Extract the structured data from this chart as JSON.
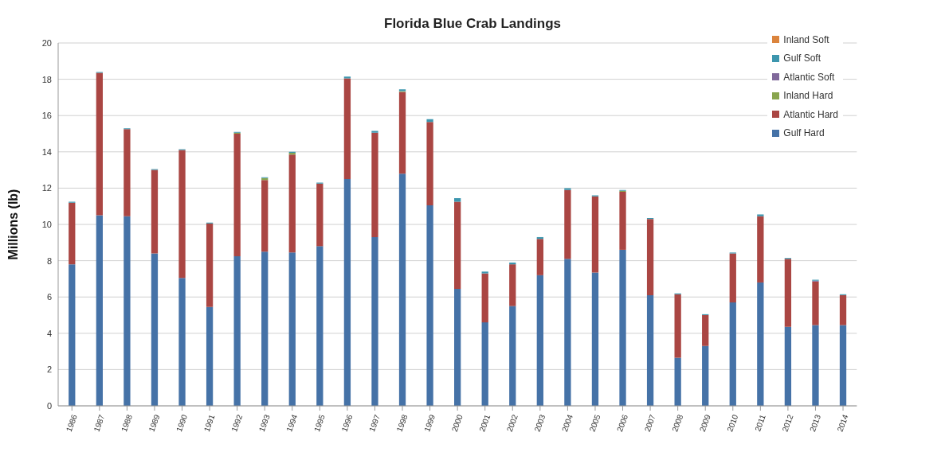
{
  "chart_data": {
    "type": "bar",
    "title": "Florida Blue Crab Landings",
    "ylabel": "Millions (lb)",
    "stacked": true,
    "legend": "top right",
    "grid": "y",
    "categories": [
      "1986",
      "1987",
      "1988",
      "1989",
      "1990",
      "1991",
      "1992",
      "1993",
      "1994",
      "1995",
      "1996",
      "1997",
      "1998",
      "1999",
      "2000",
      "2001",
      "2002",
      "2003",
      "2004",
      "2005",
      "2006",
      "2007",
      "2008",
      "2009",
      "2010",
      "2011",
      "2012",
      "2013",
      "2014"
    ],
    "ylim": [
      0,
      20
    ],
    "yticks": [
      0,
      2,
      4,
      6,
      8,
      10,
      12,
      14,
      16,
      18,
      20
    ],
    "series": [
      {
        "name": "Gulf Hard",
        "color": "#4572a7",
        "values": [
          7.8,
          10.5,
          10.45,
          8.4,
          7.05,
          5.45,
          8.25,
          8.5,
          8.45,
          8.8,
          12.5,
          9.3,
          12.8,
          11.05,
          6.45,
          4.6,
          5.5,
          7.2,
          8.1,
          7.35,
          8.6,
          6.1,
          2.65,
          3.3,
          5.7,
          6.8,
          4.35,
          4.45,
          4.45
        ]
      },
      {
        "name": "Atlantic Hard",
        "color": "#aa4643",
        "values": [
          3.4,
          7.85,
          4.8,
          4.6,
          7.05,
          4.6,
          6.75,
          3.95,
          5.4,
          3.45,
          5.55,
          5.75,
          4.5,
          4.6,
          4.8,
          2.7,
          2.3,
          2.0,
          3.8,
          4.2,
          3.2,
          4.2,
          3.5,
          1.7,
          2.7,
          3.65,
          3.75,
          2.4,
          1.65
        ]
      },
      {
        "name": "Inland Hard",
        "color": "#89a54e",
        "values": [
          0,
          0,
          0,
          0,
          0,
          0,
          0.05,
          0.1,
          0.1,
          0,
          0,
          0,
          0.05,
          0,
          0,
          0,
          0,
          0,
          0,
          0,
          0.05,
          0,
          0,
          0,
          0,
          0,
          0,
          0,
          0
        ]
      },
      {
        "name": "Atlantic Soft",
        "color": "#80699b",
        "values": [
          0,
          0,
          0,
          0,
          0,
          0,
          0,
          0,
          0,
          0,
          0,
          0,
          0,
          0,
          0,
          0,
          0,
          0,
          0,
          0,
          0,
          0,
          0,
          0,
          0,
          0,
          0,
          0.05,
          0
        ]
      },
      {
        "name": "Gulf Soft",
        "color": "#3d96ae",
        "values": [
          0.05,
          0.05,
          0.05,
          0.05,
          0.05,
          0.05,
          0.05,
          0.05,
          0.05,
          0.05,
          0.1,
          0.1,
          0.1,
          0.15,
          0.2,
          0.1,
          0.1,
          0.1,
          0.1,
          0.05,
          0.05,
          0.05,
          0.05,
          0.05,
          0.05,
          0.1,
          0.05,
          0.05,
          0.05
        ]
      },
      {
        "name": "Inland Soft",
        "color": "#db843d",
        "values": [
          0,
          0,
          0,
          0,
          0,
          0,
          0,
          0,
          0,
          0,
          0,
          0,
          0,
          0,
          0,
          0,
          0,
          0,
          0,
          0,
          0,
          0,
          0,
          0,
          0,
          0,
          0,
          0,
          0
        ]
      }
    ]
  }
}
